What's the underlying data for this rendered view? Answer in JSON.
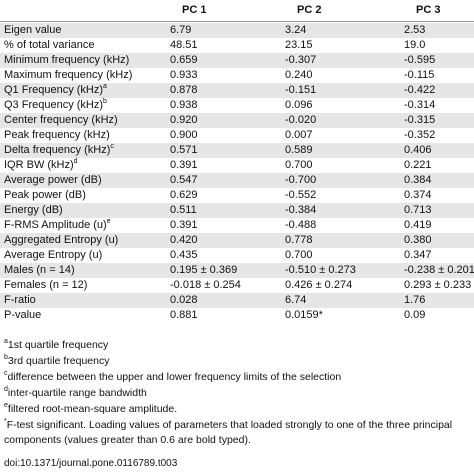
{
  "table": {
    "header": [
      "PC 1",
      "PC 2",
      "PC 3"
    ],
    "rows": [
      {
        "label": "Eigen value",
        "values": [
          "6.79",
          "3.24",
          "2.53"
        ]
      },
      {
        "label": "% of total variance",
        "values": [
          "48.51",
          "23.15",
          "19.0"
        ]
      },
      {
        "label": "Minimum frequency (kHz)",
        "values": [
          "0.659",
          "-0.307",
          "-0.595"
        ]
      },
      {
        "label": "Maximum frequency (kHz)",
        "values": [
          "0.933",
          "0.240",
          "-0.115"
        ]
      },
      {
        "label": "Q1 Frequency (kHz)",
        "note": "a",
        "values": [
          "0.878",
          "-0.151",
          "-0.422"
        ]
      },
      {
        "label": "Q3 Frequency (kHz)",
        "note": "b",
        "values": [
          "0.938",
          "0.096",
          "-0.314"
        ]
      },
      {
        "label": "Center frequency (kHz)",
        "values": [
          "0.920",
          "-0.020",
          "-0.315"
        ]
      },
      {
        "label": "Peak frequency (kHz)",
        "values": [
          "0.900",
          "0.007",
          "-0.352"
        ]
      },
      {
        "label": "Delta frequency (kHz)",
        "note": "c",
        "values": [
          "0.571",
          "0.589",
          "0.406"
        ]
      },
      {
        "label": "IQR BW (kHz)",
        "note": "d",
        "values": [
          "0.391",
          "0.700",
          "0.221"
        ]
      },
      {
        "label": "Average power (dB)",
        "values": [
          "0.547",
          "-0.700",
          "0.384"
        ]
      },
      {
        "label": "Peak power (dB)",
        "values": [
          "0.629",
          "-0.552",
          "0.374"
        ]
      },
      {
        "label": "Energy (dB)",
        "values": [
          "0.511",
          "-0.384",
          "0.713"
        ]
      },
      {
        "label": "F-RMS Amplitude (u)",
        "note": "e",
        "values": [
          "0.391",
          "-0.488",
          "0.419"
        ]
      },
      {
        "label": "Aggregated Entropy (u)",
        "values": [
          "0.420",
          "0.778",
          "0.380"
        ]
      },
      {
        "label": "Average Entropy (u)",
        "values": [
          "0.435",
          "0.700",
          "0.347"
        ]
      },
      {
        "label": "Males (n = 14)",
        "values": [
          "0.195 ± 0.369",
          "-0.510 ± 0.273",
          "-0.238 ± 0.201"
        ]
      },
      {
        "label": "Females (n = 12)",
        "values": [
          "-0.018 ± 0.254",
          "0.426 ± 0.274",
          "0.293 ± 0.233"
        ]
      },
      {
        "label": "F-ratio",
        "values": [
          "0.028",
          "6.74",
          "1.76"
        ]
      },
      {
        "label": "P-value",
        "values": [
          "0.881",
          "0.0159*",
          "0.09"
        ]
      }
    ]
  },
  "footnotes": [
    {
      "mark": "a",
      "text": "1st quartile frequency"
    },
    {
      "mark": "b",
      "text": "3rd quartile frequency"
    },
    {
      "mark": "c",
      "text": "difference between the upper and lower frequency limits of the selection"
    },
    {
      "mark": "d",
      "text": "inter-quartile range bandwidth"
    },
    {
      "mark": "e",
      "text": "filtered root-mean-square amplitude."
    },
    {
      "mark": "*",
      "text": "F-test significant. Loading values of parameters that loaded strongly to one of the three principal components (values greater than 0.6 are bold typed)."
    }
  ],
  "doi": "doi:10.1371/journal.pone.0116789.t003"
}
